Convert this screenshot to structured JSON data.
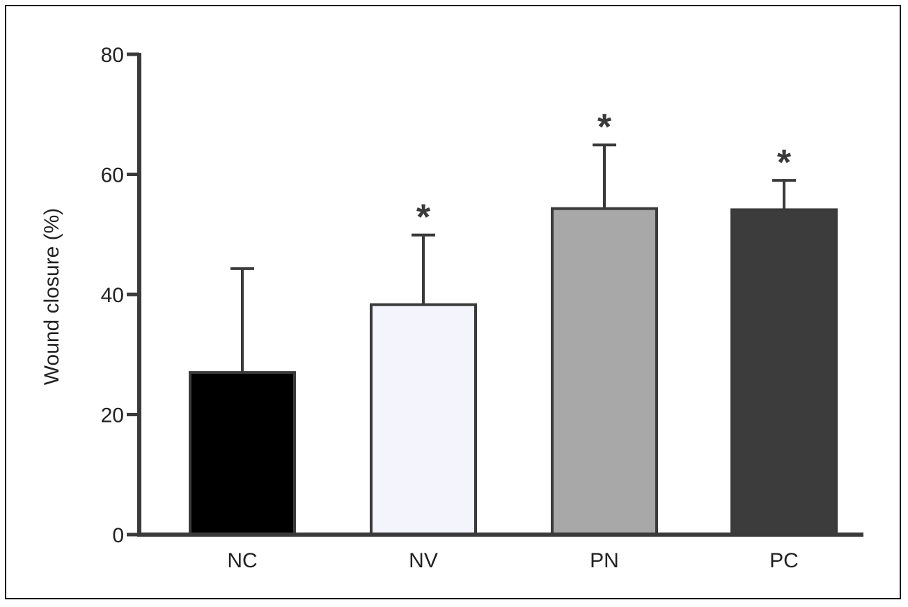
{
  "chart_data": {
    "type": "bar",
    "title": "",
    "xlabel": "",
    "ylabel": "Wound closure (%)",
    "ylim": [
      0,
      80
    ],
    "yticks": [
      0,
      20,
      40,
      60,
      80
    ],
    "grid": false,
    "categories": [
      "NC",
      "NV",
      "PN",
      "PC"
    ],
    "values": [
      27,
      38.3,
      54.3,
      54.1
    ],
    "error_upper": [
      44.3,
      49.9,
      64.9,
      59.0
    ],
    "significance": [
      "",
      "*",
      "*",
      "*"
    ],
    "colors": [
      "#000000",
      "#f4f4fc",
      "#a8a8a8",
      "#3c3c3c"
    ]
  }
}
